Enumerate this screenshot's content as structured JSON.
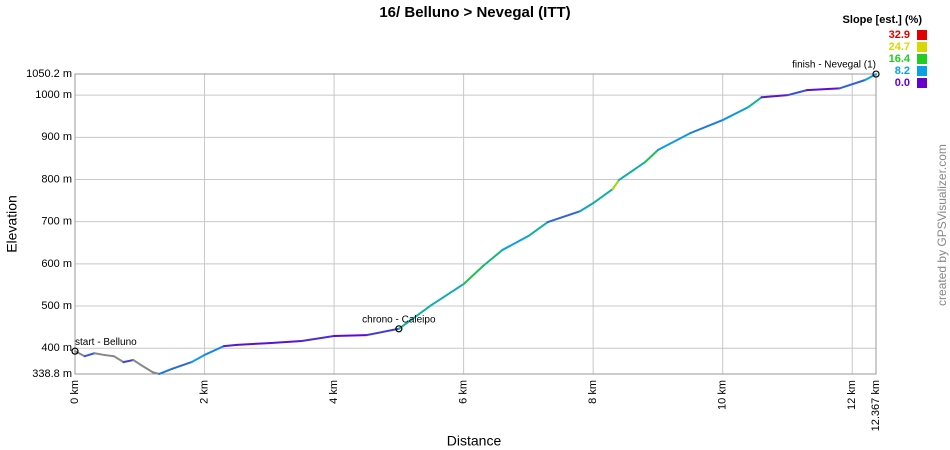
{
  "chart_data": {
    "type": "line",
    "title": "16/ Belluno > Nevegal (ITT)",
    "x_label": "Distance",
    "y_label": "Elevation",
    "credit": "created by GPSVisualizer.com",
    "grid": true,
    "xlim": [
      0,
      12.367
    ],
    "ylim": [
      338.8,
      1050.2
    ],
    "xticks": [
      {
        "value": 0,
        "label": "0 km"
      },
      {
        "value": 2,
        "label": "2 km"
      },
      {
        "value": 4,
        "label": "4 km"
      },
      {
        "value": 6,
        "label": "6 km"
      },
      {
        "value": 8,
        "label": "8 km"
      },
      {
        "value": 10,
        "label": "10 km"
      },
      {
        "value": 12,
        "label": "12 km"
      },
      {
        "value": 12.367,
        "label": "12.367 km"
      }
    ],
    "yticks": [
      {
        "value": 338.8,
        "label": "338.8 m"
      },
      {
        "value": 400,
        "label": "400 m"
      },
      {
        "value": 500,
        "label": "500 m"
      },
      {
        "value": 600,
        "label": "600 m"
      },
      {
        "value": 700,
        "label": "700 m"
      },
      {
        "value": 800,
        "label": "800 m"
      },
      {
        "value": 900,
        "label": "900 m"
      },
      {
        "value": 1000,
        "label": "1000 m"
      },
      {
        "value": 1050.2,
        "label": "1050.2 m"
      }
    ],
    "x": [
      0,
      0.15,
      0.3,
      0.45,
      0.6,
      0.75,
      0.9,
      1.0,
      1.2,
      1.3,
      1.5,
      1.8,
      2.0,
      2.3,
      2.5,
      3.0,
      3.5,
      4.0,
      4.5,
      5.0,
      5.5,
      6.0,
      6.3,
      6.6,
      7.0,
      7.3,
      7.8,
      8.0,
      8.3,
      8.4,
      8.8,
      9.0,
      9.5,
      10.0,
      10.4,
      10.6,
      11.0,
      11.3,
      11.8,
      12.2,
      12.367
    ],
    "series": [
      {
        "values": [
          393,
          381,
          388,
          384,
          381,
          367,
          372,
          362,
          343,
          339,
          351,
          367,
          384,
          405,
          408,
          412,
          417,
          429,
          431,
          446,
          502,
          552,
          595,
          633,
          666,
          699,
          725,
          744,
          777,
          799,
          841,
          870,
          910,
          941,
          972,
          995,
          1000,
          1012,
          1016,
          1036,
          1050
        ]
      }
    ],
    "downhill_color": "#888888",
    "legend": {
      "title": "Slope [est.] (%)",
      "items": [
        {
          "value": 32.9,
          "label": "32.9",
          "color": "#e00000"
        },
        {
          "value": 24.7,
          "label": "24.7",
          "color": "#d8d800"
        },
        {
          "value": 16.4,
          "label": "16.4",
          "color": "#22cc22"
        },
        {
          "value": 8.2,
          "label": "8.2",
          "color": "#0aa0e8"
        },
        {
          "value": 0.0,
          "label": "0.0",
          "color": "#6600cc"
        }
      ]
    },
    "waypoints": [
      {
        "label": "start - Belluno",
        "x": 0,
        "y": 393
      },
      {
        "label": "chrono - Caleipo",
        "x": 5.0,
        "y": 446
      },
      {
        "label": "finish - Nevegal (1)",
        "x": 12.367,
        "y": 1050
      }
    ]
  }
}
